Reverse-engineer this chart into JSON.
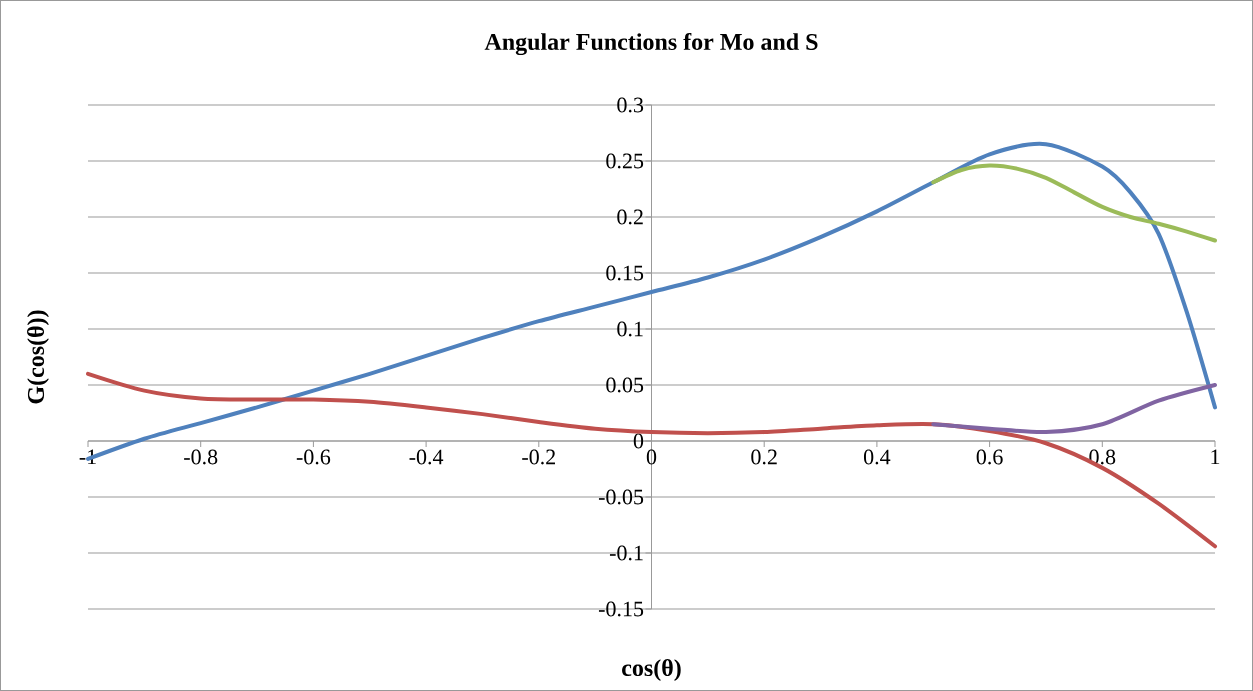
{
  "chart_data": {
    "type": "line",
    "title": "Angular Functions for Mo and S",
    "xlabel": "cos(θ)",
    "ylabel": "G(cos(θ))",
    "xlim": [
      -1,
      1
    ],
    "ylim": [
      -0.15,
      0.3
    ],
    "xticks": [
      -1,
      -0.8,
      -0.6,
      -0.4,
      -0.2,
      0,
      0.2,
      0.4,
      0.6,
      0.8,
      1
    ],
    "yticks": [
      -0.15,
      -0.1,
      -0.05,
      0,
      0.05,
      0.1,
      0.15,
      0.2,
      0.25,
      0.3
    ],
    "grid": "y",
    "series": [
      {
        "color": "#4f81bd",
        "x": [
          -1,
          -0.9,
          -0.8,
          -0.7,
          -0.6,
          -0.5,
          -0.4,
          -0.3,
          -0.2,
          -0.1,
          0,
          0.1,
          0.2,
          0.3,
          0.4,
          0.5,
          0.6,
          0.7,
          0.8,
          0.85,
          0.9,
          0.95,
          1
        ],
        "values": [
          -0.016,
          0.002,
          0.016,
          0.03,
          0.045,
          0.06,
          0.076,
          0.092,
          0.107,
          0.12,
          0.133,
          0.146,
          0.162,
          0.182,
          0.205,
          0.231,
          0.256,
          0.265,
          0.245,
          0.222,
          0.185,
          0.115,
          0.03
        ]
      },
      {
        "color": "#c0504d",
        "x": [
          -1,
          -0.9,
          -0.8,
          -0.7,
          -0.6,
          -0.5,
          -0.4,
          -0.3,
          -0.2,
          -0.1,
          0,
          0.1,
          0.2,
          0.3,
          0.4,
          0.5,
          0.6,
          0.7,
          0.8,
          0.9,
          1
        ],
        "values": [
          0.06,
          0.045,
          0.038,
          0.037,
          0.037,
          0.035,
          0.03,
          0.024,
          0.017,
          0.011,
          0.008,
          0.007,
          0.008,
          0.011,
          0.014,
          0.015,
          0.009,
          -0.002,
          -0.024,
          -0.056,
          -0.094
        ]
      },
      {
        "color": "#9bbb59",
        "x": [
          0.5,
          0.55,
          0.6,
          0.65,
          0.7,
          0.75,
          0.8,
          0.85,
          0.9,
          0.95,
          1
        ],
        "values": [
          0.231,
          0.242,
          0.246,
          0.243,
          0.235,
          0.222,
          0.209,
          0.2,
          0.194,
          0.187,
          0.179
        ]
      },
      {
        "color": "#8064a2",
        "x": [
          0.5,
          0.6,
          0.7,
          0.8,
          0.9,
          1
        ],
        "values": [
          0.015,
          0.011,
          0.008,
          0.015,
          0.036,
          0.05
        ]
      }
    ]
  }
}
